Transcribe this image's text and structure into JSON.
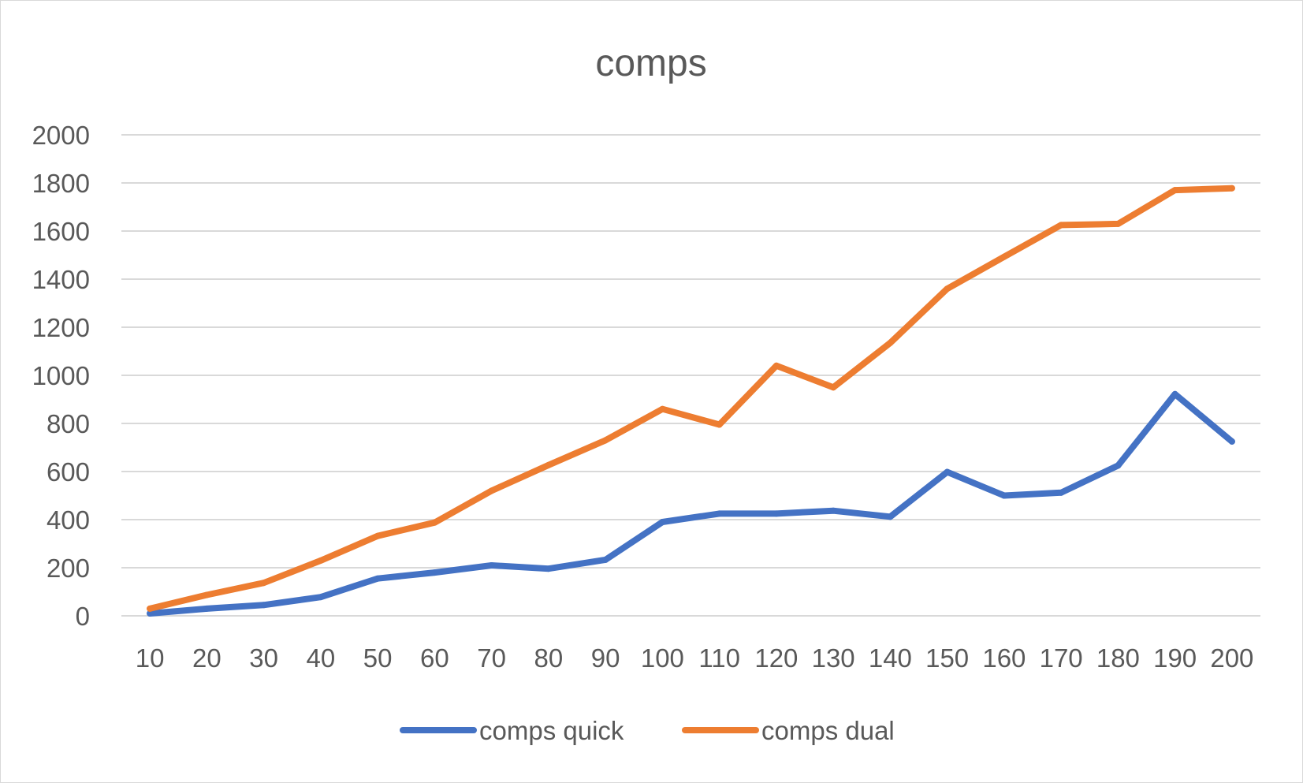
{
  "chart_data": {
    "type": "line",
    "title": "comps",
    "xlabel": "",
    "ylabel": "",
    "categories": [
      "10",
      "20",
      "30",
      "40",
      "50",
      "60",
      "70",
      "80",
      "90",
      "100",
      "110",
      "120",
      "130",
      "140",
      "150",
      "160",
      "170",
      "180",
      "190",
      "200"
    ],
    "ylim": [
      0,
      2000
    ],
    "yticks": [
      0,
      200,
      400,
      600,
      800,
      1000,
      1200,
      1400,
      1600,
      1800,
      2000
    ],
    "grid": true,
    "legend_position": "bottom",
    "series": [
      {
        "name": "comps quick",
        "color": "#4472c4",
        "values": [
          10,
          30,
          45,
          78,
          155,
          180,
          210,
          196,
          233,
          390,
          425,
          425,
          437,
          412,
          598,
          500,
          512,
          625,
          922,
          725
        ]
      },
      {
        "name": "comps dual",
        "color": "#ed7d31",
        "values": [
          30,
          87,
          137,
          230,
          332,
          388,
          520,
          627,
          730,
          860,
          795,
          1040,
          950,
          1135,
          1360,
          1493,
          1625,
          1630,
          1770,
          1778
        ]
      }
    ]
  }
}
